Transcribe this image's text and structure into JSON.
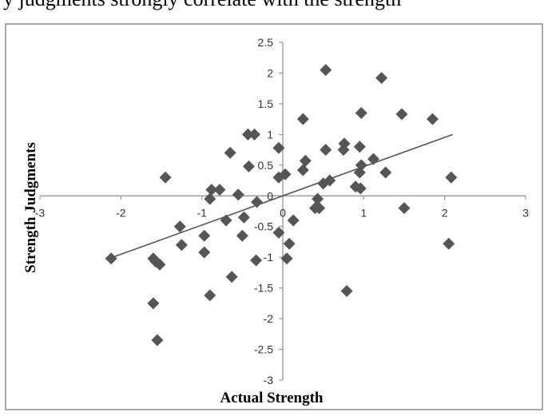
{
  "cropped_caption": "y judgments strongly correlate with the strength",
  "chart_data": {
    "type": "scatter",
    "title": "",
    "xlabel": "Actual Strength",
    "ylabel": "Strength Judgments",
    "xlim": [
      -3,
      3
    ],
    "ylim": [
      -3,
      2.5
    ],
    "x_ticks": [
      -3,
      -2,
      -1,
      0,
      1,
      2,
      3
    ],
    "y_ticks": [
      -3,
      -2.5,
      -2,
      -1.5,
      -1,
      -0.5,
      0,
      0.5,
      1,
      1.5,
      2,
      2.5
    ],
    "x_tick_labels": [
      "-3",
      "-2",
      "-1",
      "0",
      "1",
      "2",
      "3"
    ],
    "y_tick_labels": [
      "-3",
      "-2.5",
      "-2",
      "-1.5",
      "-1",
      "-0.5",
      "0",
      "0.5",
      "1",
      "1.5",
      "2",
      "2.5"
    ],
    "grid": false,
    "marker_color": "#555555",
    "trendline": {
      "x": [
        -2.1,
        2.1
      ],
      "y": [
        -1.0,
        1.0
      ],
      "color": "#555555"
    },
    "points": [
      {
        "x": 0.53,
        "y": 2.05
      },
      {
        "x": 1.22,
        "y": 1.92
      },
      {
        "x": 0.97,
        "y": 1.35
      },
      {
        "x": 1.47,
        "y": 1.33
      },
      {
        "x": 1.85,
        "y": 1.25
      },
      {
        "x": 0.25,
        "y": 1.25
      },
      {
        "x": -0.43,
        "y": 1.0
      },
      {
        "x": -0.35,
        "y": 1.0
      },
      {
        "x": 0.76,
        "y": 0.85
      },
      {
        "x": 0.95,
        "y": 0.8
      },
      {
        "x": -0.05,
        "y": 0.78
      },
      {
        "x": 0.53,
        "y": 0.75
      },
      {
        "x": 0.75,
        "y": 0.75
      },
      {
        "x": -0.65,
        "y": 0.7
      },
      {
        "x": 1.12,
        "y": 0.6
      },
      {
        "x": 0.28,
        "y": 0.57
      },
      {
        "x": 0.97,
        "y": 0.5
      },
      {
        "x": -0.42,
        "y": 0.48
      },
      {
        "x": 0.25,
        "y": 0.42
      },
      {
        "x": 1.27,
        "y": 0.38
      },
      {
        "x": 0.95,
        "y": 0.38
      },
      {
        "x": 0.03,
        "y": 0.35
      },
      {
        "x": -0.05,
        "y": 0.3
      },
      {
        "x": -1.45,
        "y": 0.3
      },
      {
        "x": 2.08,
        "y": 0.3
      },
      {
        "x": 0.58,
        "y": 0.25
      },
      {
        "x": 0.5,
        "y": 0.2
      },
      {
        "x": 0.9,
        "y": 0.15
      },
      {
        "x": 0.96,
        "y": 0.12
      },
      {
        "x": -0.88,
        "y": 0.1
      },
      {
        "x": -0.78,
        "y": 0.1
      },
      {
        "x": -0.55,
        "y": 0.02
      },
      {
        "x": 0.43,
        "y": -0.05
      },
      {
        "x": -0.9,
        "y": -0.05
      },
      {
        "x": -0.32,
        "y": -0.1
      },
      {
        "x": 0.4,
        "y": -0.2
      },
      {
        "x": 0.45,
        "y": -0.2
      },
      {
        "x": 1.5,
        "y": -0.2
      },
      {
        "x": -0.48,
        "y": -0.35
      },
      {
        "x": -0.7,
        "y": -0.4
      },
      {
        "x": 0.13,
        "y": -0.4
      },
      {
        "x": -1.27,
        "y": -0.5
      },
      {
        "x": -0.05,
        "y": -0.6
      },
      {
        "x": -0.5,
        "y": -0.65
      },
      {
        "x": -0.97,
        "y": -0.65
      },
      {
        "x": 0.08,
        "y": -0.78
      },
      {
        "x": 2.05,
        "y": -0.78
      },
      {
        "x": -1.25,
        "y": -0.8
      },
      {
        "x": -0.97,
        "y": -0.92
      },
      {
        "x": -2.12,
        "y": -1.02
      },
      {
        "x": -1.6,
        "y": -1.02
      },
      {
        "x": -1.57,
        "y": -1.07
      },
      {
        "x": -1.52,
        "y": -1.12
      },
      {
        "x": 0.05,
        "y": -1.02
      },
      {
        "x": -0.33,
        "y": -1.05
      },
      {
        "x": -0.63,
        "y": -1.32
      },
      {
        "x": 0.79,
        "y": -1.55
      },
      {
        "x": -0.9,
        "y": -1.62
      },
      {
        "x": -1.6,
        "y": -1.75
      },
      {
        "x": -1.55,
        "y": -2.35
      }
    ]
  }
}
